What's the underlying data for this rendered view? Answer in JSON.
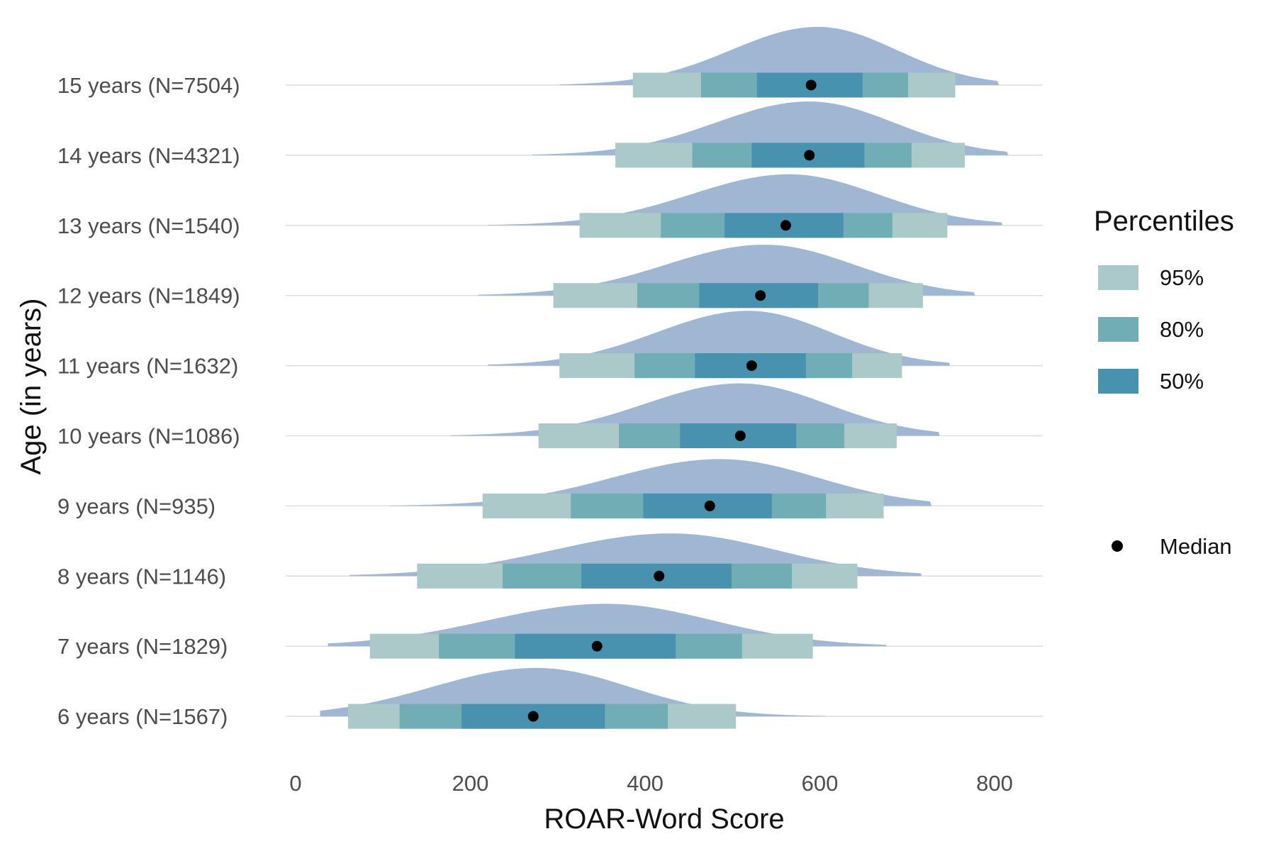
{
  "chart_data": {
    "type": "ridgeline-interval",
    "xlabel": "ROAR-Word Score",
    "ylabel": "Age (in years)",
    "xlim": [
      0,
      850
    ],
    "xticks": [
      0,
      200,
      400,
      600,
      800
    ],
    "xtick_labels": [
      "0",
      "200",
      "400",
      "600",
      "800"
    ],
    "grid": "horizontal baselines",
    "legend": {
      "title": "Percentiles",
      "placement": "right",
      "entries": [
        {
          "label": "95%",
          "color": "#abc9c8"
        },
        {
          "label": "80%",
          "color": "#71adb5"
        },
        {
          "label": "50%",
          "color": "#4892b0"
        }
      ],
      "median_label": "Median"
    },
    "colors": {
      "density": "#9fb7d2",
      "median": "#000000",
      "grid": "#dddddd"
    },
    "rows": [
      {
        "label": "15 years (N=7504)",
        "min": 302,
        "max": 805,
        "mode": 598,
        "p95": [
          386,
          755
        ],
        "p80": [
          464,
          701
        ],
        "p50": [
          528,
          649
        ],
        "median": 590
      },
      {
        "label": "14 years (N=4321)",
        "min": 271,
        "max": 816,
        "mode": 588,
        "p95": [
          366,
          766
        ],
        "p80": [
          454,
          705
        ],
        "p50": [
          522,
          651
        ],
        "median": 588
      },
      {
        "label": "13 years (N=1540)",
        "min": 220,
        "max": 809,
        "mode": 565,
        "p95": [
          325,
          746
        ],
        "p80": [
          418,
          683
        ],
        "p50": [
          491,
          627
        ],
        "median": 561
      },
      {
        "label": "12 years (N=1849)",
        "min": 209,
        "max": 778,
        "mode": 537,
        "p95": [
          295,
          718
        ],
        "p80": [
          391,
          656
        ],
        "p50": [
          462,
          598
        ],
        "median": 532
      },
      {
        "label": "11 years (N=1632)",
        "min": 220,
        "max": 749,
        "mode": 518,
        "p95": [
          302,
          694
        ],
        "p80": [
          388,
          637
        ],
        "p50": [
          457,
          584
        ],
        "median": 522
      },
      {
        "label": "10 years (N=1086)",
        "min": 178,
        "max": 737,
        "mode": 509,
        "p95": [
          278,
          688
        ],
        "p80": [
          370,
          628
        ],
        "p50": [
          440,
          573
        ],
        "median": 509
      },
      {
        "label": "9 years (N=935)",
        "min": 108,
        "max": 728,
        "mode": 486,
        "p95": [
          214,
          673
        ],
        "p80": [
          315,
          607
        ],
        "p50": [
          398,
          545
        ],
        "median": 474
      },
      {
        "label": "8 years (N=1146)",
        "min": 62,
        "max": 716,
        "mode": 429,
        "p95": [
          139,
          643
        ],
        "p80": [
          237,
          568
        ],
        "p50": [
          327,
          499
        ],
        "median": 416
      },
      {
        "label": "7 years (N=1829)",
        "min": 37,
        "max": 676,
        "mode": 355,
        "p95": [
          85,
          592
        ],
        "p80": [
          164,
          511
        ],
        "p50": [
          251,
          435
        ],
        "median": 345
      },
      {
        "label": "6 years (N=1567)",
        "min": 28,
        "max": 607,
        "mode": 275,
        "p95": [
          60,
          504
        ],
        "p80": [
          119,
          426
        ],
        "p50": [
          190,
          354
        ],
        "median": 272
      }
    ]
  }
}
